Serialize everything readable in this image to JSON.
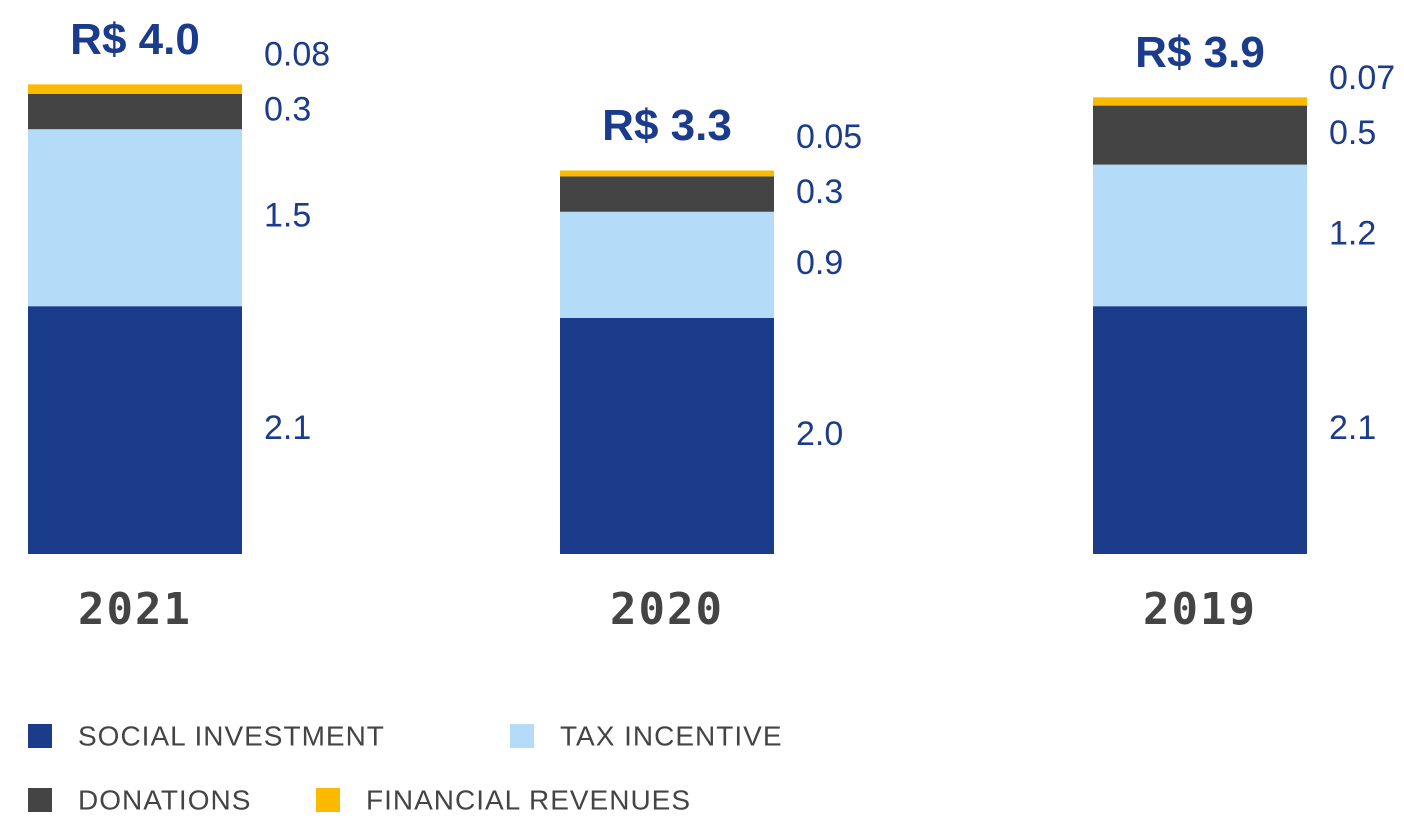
{
  "chart_data": {
    "type": "stacked-bar",
    "categories": [
      "2021",
      "2020",
      "2019"
    ],
    "totals": [
      4.0,
      3.3,
      3.9
    ],
    "total_labels": [
      "R$ 4.0",
      "R$ 3.3",
      "R$ 3.9"
    ],
    "series": [
      {
        "name": "SOCIAL INVESTMENT",
        "color": "#1b3b8b",
        "values": [
          2.1,
          2.0,
          2.1
        ],
        "value_labels": [
          "2.1",
          "2.0",
          "2.1"
        ]
      },
      {
        "name": "TAX INCENTIVE",
        "color": "#b4dbf7",
        "values": [
          1.5,
          0.9,
          1.2
        ],
        "value_labels": [
          "1.5",
          "0.9",
          "1.2"
        ]
      },
      {
        "name": "DONATIONS",
        "color": "#444444",
        "values": [
          0.3,
          0.3,
          0.5
        ],
        "value_labels": [
          "0.3",
          "0.3",
          "0.5"
        ]
      },
      {
        "name": "FINANCIAL REVENUES",
        "color": "#fbb900",
        "values": [
          0.08,
          0.05,
          0.07
        ],
        "value_labels": [
          "0.08",
          "0.05",
          "0.07"
        ]
      }
    ]
  }
}
